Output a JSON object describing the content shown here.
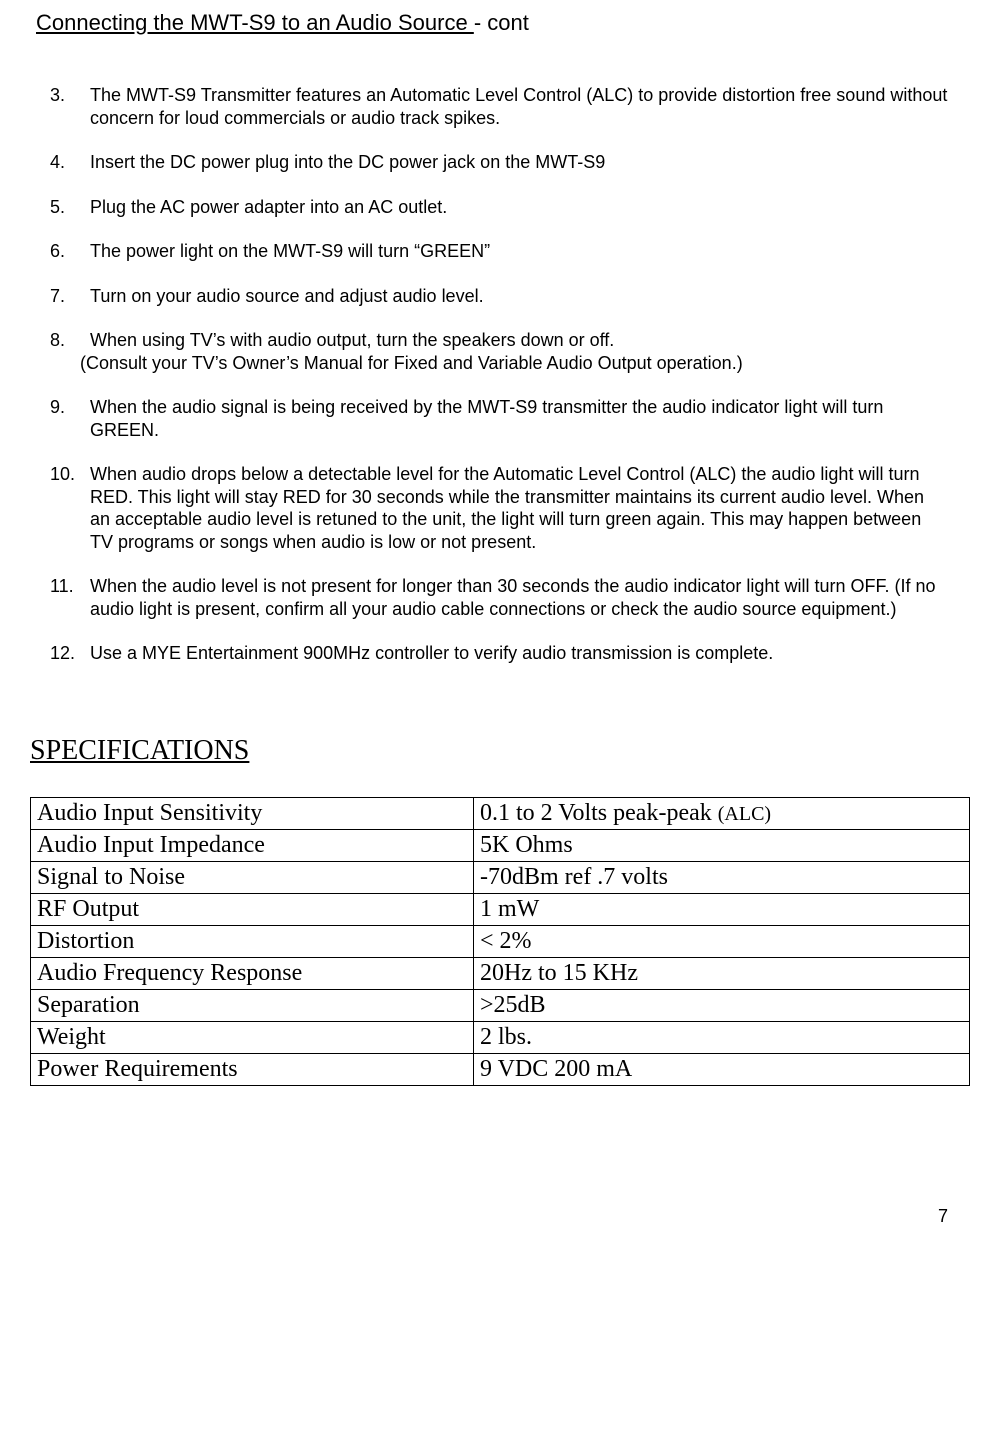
{
  "title": {
    "underlined": "Connecting the MWT-S9 to an Audio Source ",
    "rest": "- cont"
  },
  "steps": [
    {
      "num": "3.",
      "text": "The MWT-S9 Transmitter features an Automatic Level Control (ALC) to provide distortion free sound without concern for loud commercials or audio track spikes."
    },
    {
      "num": "4.",
      "text": "Insert the DC power plug into the DC power jack on the MWT-S9"
    },
    {
      "num": "5.",
      "text": "Plug the AC power adapter into an AC outlet."
    },
    {
      "num": "6.",
      "text": "The power light on the MWT-S9 will turn “GREEN”"
    },
    {
      "num": "7.",
      "text": "Turn on your audio source and adjust audio level."
    },
    {
      "num": "8.",
      "text": "When using TV’s with audio output, turn the speakers down or off.",
      "sub": "(Consult your TV’s Owner’s Manual for Fixed and Variable Audio Output operation.)"
    },
    {
      "num": "9.",
      "text": "When the audio signal is being received by the MWT-S9 transmitter the audio indicator light will turn GREEN."
    },
    {
      "num": "10.",
      "text": "When audio drops below a detectable level for the Automatic Level Control (ALC) the audio light will turn RED. This light will stay RED for 30 seconds while the transmitter maintains its current audio level. When an acceptable audio level is retuned to the unit, the light will turn green again. This may happen between TV programs or songs when audio is low or not present."
    },
    {
      "num": "11.",
      "text": "When the audio level is not present for longer than 30 seconds the audio indicator light will turn OFF. (If no audio light is present, confirm all your audio cable connections or check the audio source equipment.)"
    },
    {
      "num": "12.",
      "text": "Use a MYE Entertainment 900MHz controller to verify audio transmission is complete."
    }
  ],
  "spec_heading": "SPECIFICATIONS",
  "spec_table": {
    "rows": [
      {
        "label": "Audio Input Sensitivity",
        "value_pre": " 0.1 to 2 Volts peak-peak ",
        "value_small": "(ALC)"
      },
      {
        "label": "Audio Input Impedance",
        "value": "5K Ohms"
      },
      {
        "label": "Signal to Noise",
        "value": "-70dBm ref .7 volts"
      },
      {
        "label": "RF Output",
        "value": "1 mW"
      },
      {
        "label": "Distortion",
        "value": "< 2%"
      },
      {
        "label": "Audio Frequency Response",
        "value": "20Hz to 15 KHz"
      },
      {
        "label": "Separation",
        "value": ">25dB"
      },
      {
        "label": "Weight",
        "value": "2 lbs."
      },
      {
        "label": "Power Requirements",
        "value": "9 VDC 200 mA"
      }
    ]
  },
  "page_number": "7"
}
